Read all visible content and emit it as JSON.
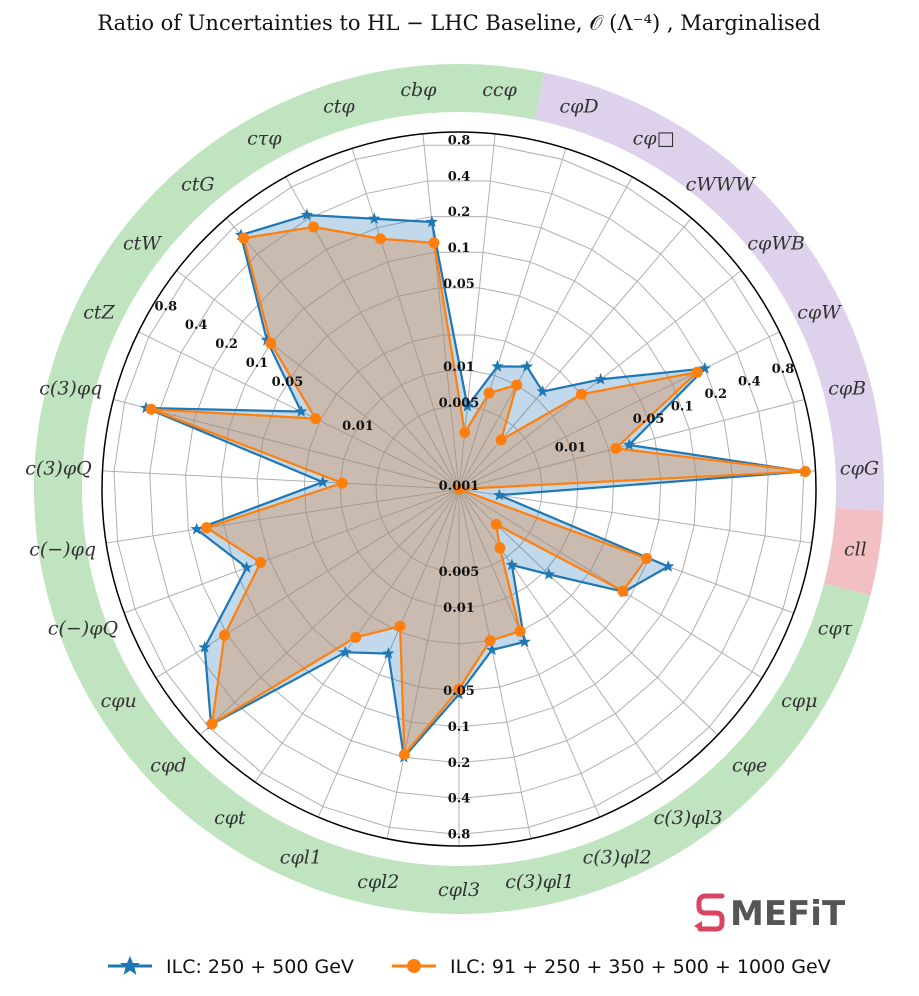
{
  "chart_data": {
    "type": "radar",
    "title": "Ratio of Uncertainties to HL − LHC Baseline, 𝒪 (Λ⁻⁴) , Marginalised",
    "radial_scale": "log",
    "rlim": [
      0.001,
      1.0
    ],
    "radial_ticks": [
      "0.001",
      "0.005",
      "0.01",
      "0.05",
      "0.1",
      "0.2",
      "0.4",
      "0.8"
    ],
    "grid": true,
    "legend_position": "bottom",
    "categories": [
      {
        "label": "cφD",
        "group": "EW"
      },
      {
        "label": "cφ□",
        "group": "EW"
      },
      {
        "label": "cWWW",
        "group": "EW"
      },
      {
        "label": "cφWB",
        "group": "EW"
      },
      {
        "label": "cφW",
        "group": "EW"
      },
      {
        "label": "cφB",
        "group": "EW"
      },
      {
        "label": "cφG",
        "group": "EW"
      },
      {
        "label": "cll",
        "group": "4F"
      },
      {
        "label": "cφτ",
        "group": "Fermion"
      },
      {
        "label": "cφμ",
        "group": "Fermion"
      },
      {
        "label": "cφe",
        "group": "Fermion"
      },
      {
        "label": "c(3)φl3",
        "group": "Fermion"
      },
      {
        "label": "c(3)φl2",
        "group": "Fermion"
      },
      {
        "label": "c(3)φl1",
        "group": "Fermion"
      },
      {
        "label": "cφl3",
        "group": "Fermion"
      },
      {
        "label": "cφl2",
        "group": "Fermion"
      },
      {
        "label": "cφl1",
        "group": "Fermion"
      },
      {
        "label": "cφt",
        "group": "Fermion"
      },
      {
        "label": "cφd",
        "group": "Fermion"
      },
      {
        "label": "cφu",
        "group": "Fermion"
      },
      {
        "label": "c(−)φQ",
        "group": "Fermion"
      },
      {
        "label": "c(−)φq",
        "group": "Fermion"
      },
      {
        "label": "c(3)φQ",
        "group": "Fermion"
      },
      {
        "label": "c(3)φq",
        "group": "Fermion"
      },
      {
        "label": "ctZ",
        "group": "Fermion"
      },
      {
        "label": "ctW",
        "group": "Fermion"
      },
      {
        "label": "ctG",
        "group": "Fermion"
      },
      {
        "label": "cτφ",
        "group": "Fermion"
      },
      {
        "label": "ctφ",
        "group": "Fermion"
      },
      {
        "label": "cbφ",
        "group": "Fermion"
      },
      {
        "label": "ccφ",
        "group": "Fermion"
      }
    ],
    "group_colors": {
      "EW": "#ddd1ec",
      "4F": "#f2c0c3",
      "Fermion": "#c0e4c0"
    },
    "series": [
      {
        "name": "ILC: 250 + 500 GeV",
        "color": "#1f77b4",
        "marker": "star",
        "values": [
          0.012,
          0.015,
          0.012,
          0.032,
          0.2,
          0.03,
          0.8,
          0.0022,
          0.075,
          0.043,
          0.011,
          0.006,
          0.025,
          0.024,
          0.053,
          0.2,
          0.032,
          0.047,
          0.75,
          0.33,
          0.08,
          0.17,
          0.014,
          0.52,
          0.03,
          0.11,
          0.65,
          0.43,
          0.24,
          0.18,
          0.005
        ]
      },
      {
        "name": "ILC: 91 + 250 + 350 + 500 + 1000 GeV",
        "color": "#ff7f0e",
        "marker": "circle",
        "values": [
          0.007,
          0.01,
          0.0035,
          0.02,
          0.17,
          0.023,
          0.82,
          0.001,
          0.048,
          0.042,
          0.0027,
          0.004,
          0.02,
          0.02,
          0.048,
          0.19,
          0.018,
          0.033,
          0.73,
          0.21,
          0.06,
          0.14,
          0.0096,
          0.47,
          0.022,
          0.1,
          0.6,
          0.33,
          0.16,
          0.12,
          0.003
        ]
      }
    ]
  },
  "legend": {
    "series1": "ILC: 250 + 500 GeV",
    "series2": "ILC: 91 + 250 + 350 + 500 + 1000 GeV"
  },
  "logo": {
    "text": "MEFiT",
    "letter": "S"
  }
}
